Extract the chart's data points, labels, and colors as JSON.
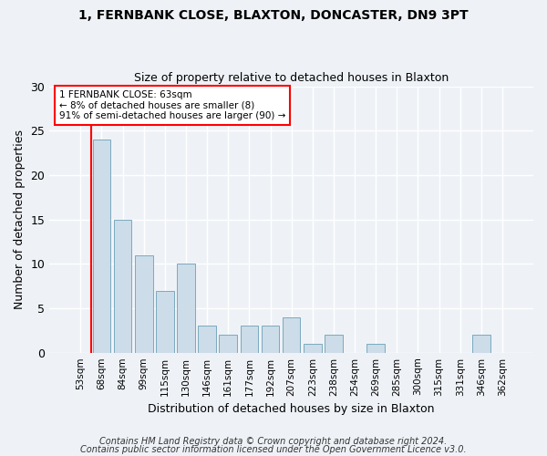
{
  "title1": "1, FERNBANK CLOSE, BLAXTON, DONCASTER, DN9 3PT",
  "title2": "Size of property relative to detached houses in Blaxton",
  "xlabel": "Distribution of detached houses by size in Blaxton",
  "ylabel": "Number of detached properties",
  "categories": [
    "53sqm",
    "68sqm",
    "84sqm",
    "99sqm",
    "115sqm",
    "130sqm",
    "146sqm",
    "161sqm",
    "177sqm",
    "192sqm",
    "207sqm",
    "223sqm",
    "238sqm",
    "254sqm",
    "269sqm",
    "285sqm",
    "300sqm",
    "315sqm",
    "331sqm",
    "346sqm",
    "362sqm"
  ],
  "values": [
    0,
    24,
    15,
    11,
    7,
    10,
    3,
    2,
    3,
    3,
    4,
    1,
    2,
    0,
    1,
    0,
    0,
    0,
    0,
    2,
    0
  ],
  "bar_color": "#ccdce8",
  "bar_edge_color": "#7aaabe",
  "annotation_title": "1 FERNBANK CLOSE: 63sqm",
  "annotation_line1": "← 8% of detached houses are smaller (8)",
  "annotation_line2": "91% of semi-detached houses are larger (90) →",
  "ylim": [
    0,
    30
  ],
  "yticks": [
    0,
    5,
    10,
    15,
    20,
    25,
    30
  ],
  "footer1": "Contains HM Land Registry data © Crown copyright and database right 2024.",
  "footer2": "Contains public sector information licensed under the Open Government Licence v3.0.",
  "bg_color": "#eef2f7",
  "plot_bg_color": "#eef2f7",
  "grid_color": "#ffffff",
  "title_fontsize": 10,
  "subtitle_fontsize": 9,
  "ylabel_fontsize": 9,
  "xlabel_fontsize": 9
}
